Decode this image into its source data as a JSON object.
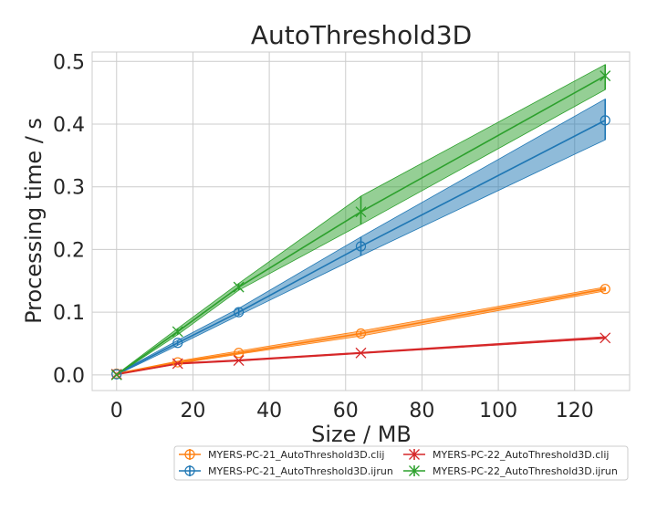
{
  "chart_data": {
    "type": "line",
    "title": "AutoThreshold3D",
    "xlabel": "Size / MB",
    "ylabel": "Processing time / s",
    "xlim": [
      -6.4,
      134.4
    ],
    "ylim": [
      -0.025,
      0.515
    ],
    "xticks": [
      0,
      20,
      40,
      60,
      80,
      100,
      120
    ],
    "yticks": [
      0.0,
      0.1,
      0.2,
      0.3,
      0.4,
      0.5
    ],
    "xtick_labels": [
      "0",
      "20",
      "40",
      "60",
      "80",
      "100",
      "120"
    ],
    "ytick_labels": [
      "0.0",
      "0.1",
      "0.2",
      "0.3",
      "0.4",
      "0.5"
    ],
    "grid": true,
    "legend_position": "below-right",
    "x": [
      0,
      16,
      32,
      64,
      128
    ],
    "series": [
      {
        "name": "MYERS-PC-21_AutoThreshold3D.clij",
        "color": "#ff7f0e",
        "marker": "circle",
        "values": [
          0.002,
          0.02,
          0.035,
          0.066,
          0.137
        ],
        "lower": [
          0.0015,
          0.018,
          0.033,
          0.062,
          0.134
        ],
        "upper": [
          0.0025,
          0.022,
          0.038,
          0.07,
          0.14
        ]
      },
      {
        "name": "MYERS-PC-21_AutoThreshold3D.ijrun",
        "color": "#1f77b4",
        "marker": "circle",
        "values": [
          0.001,
          0.051,
          0.1,
          0.205,
          0.406
        ],
        "lower": [
          0.0,
          0.047,
          0.095,
          0.19,
          0.375
        ],
        "upper": [
          0.002,
          0.055,
          0.106,
          0.22,
          0.44
        ]
      },
      {
        "name": "MYERS-PC-22_AutoThreshold3D.clij",
        "color": "#d62728",
        "marker": "x",
        "values": [
          0.001,
          0.018,
          0.023,
          0.035,
          0.059
        ],
        "lower": [
          0.0,
          0.017,
          0.022,
          0.034,
          0.058
        ],
        "upper": [
          0.002,
          0.019,
          0.024,
          0.036,
          0.061
        ]
      },
      {
        "name": "MYERS-PC-22_AutoThreshold3D.ijrun",
        "color": "#2ca02c",
        "marker": "x",
        "values": [
          0.0,
          0.069,
          0.14,
          0.26,
          0.477
        ],
        "lower": [
          0.0,
          0.064,
          0.135,
          0.24,
          0.455
        ],
        "upper": [
          0.001,
          0.074,
          0.146,
          0.285,
          0.495
        ]
      }
    ]
  }
}
